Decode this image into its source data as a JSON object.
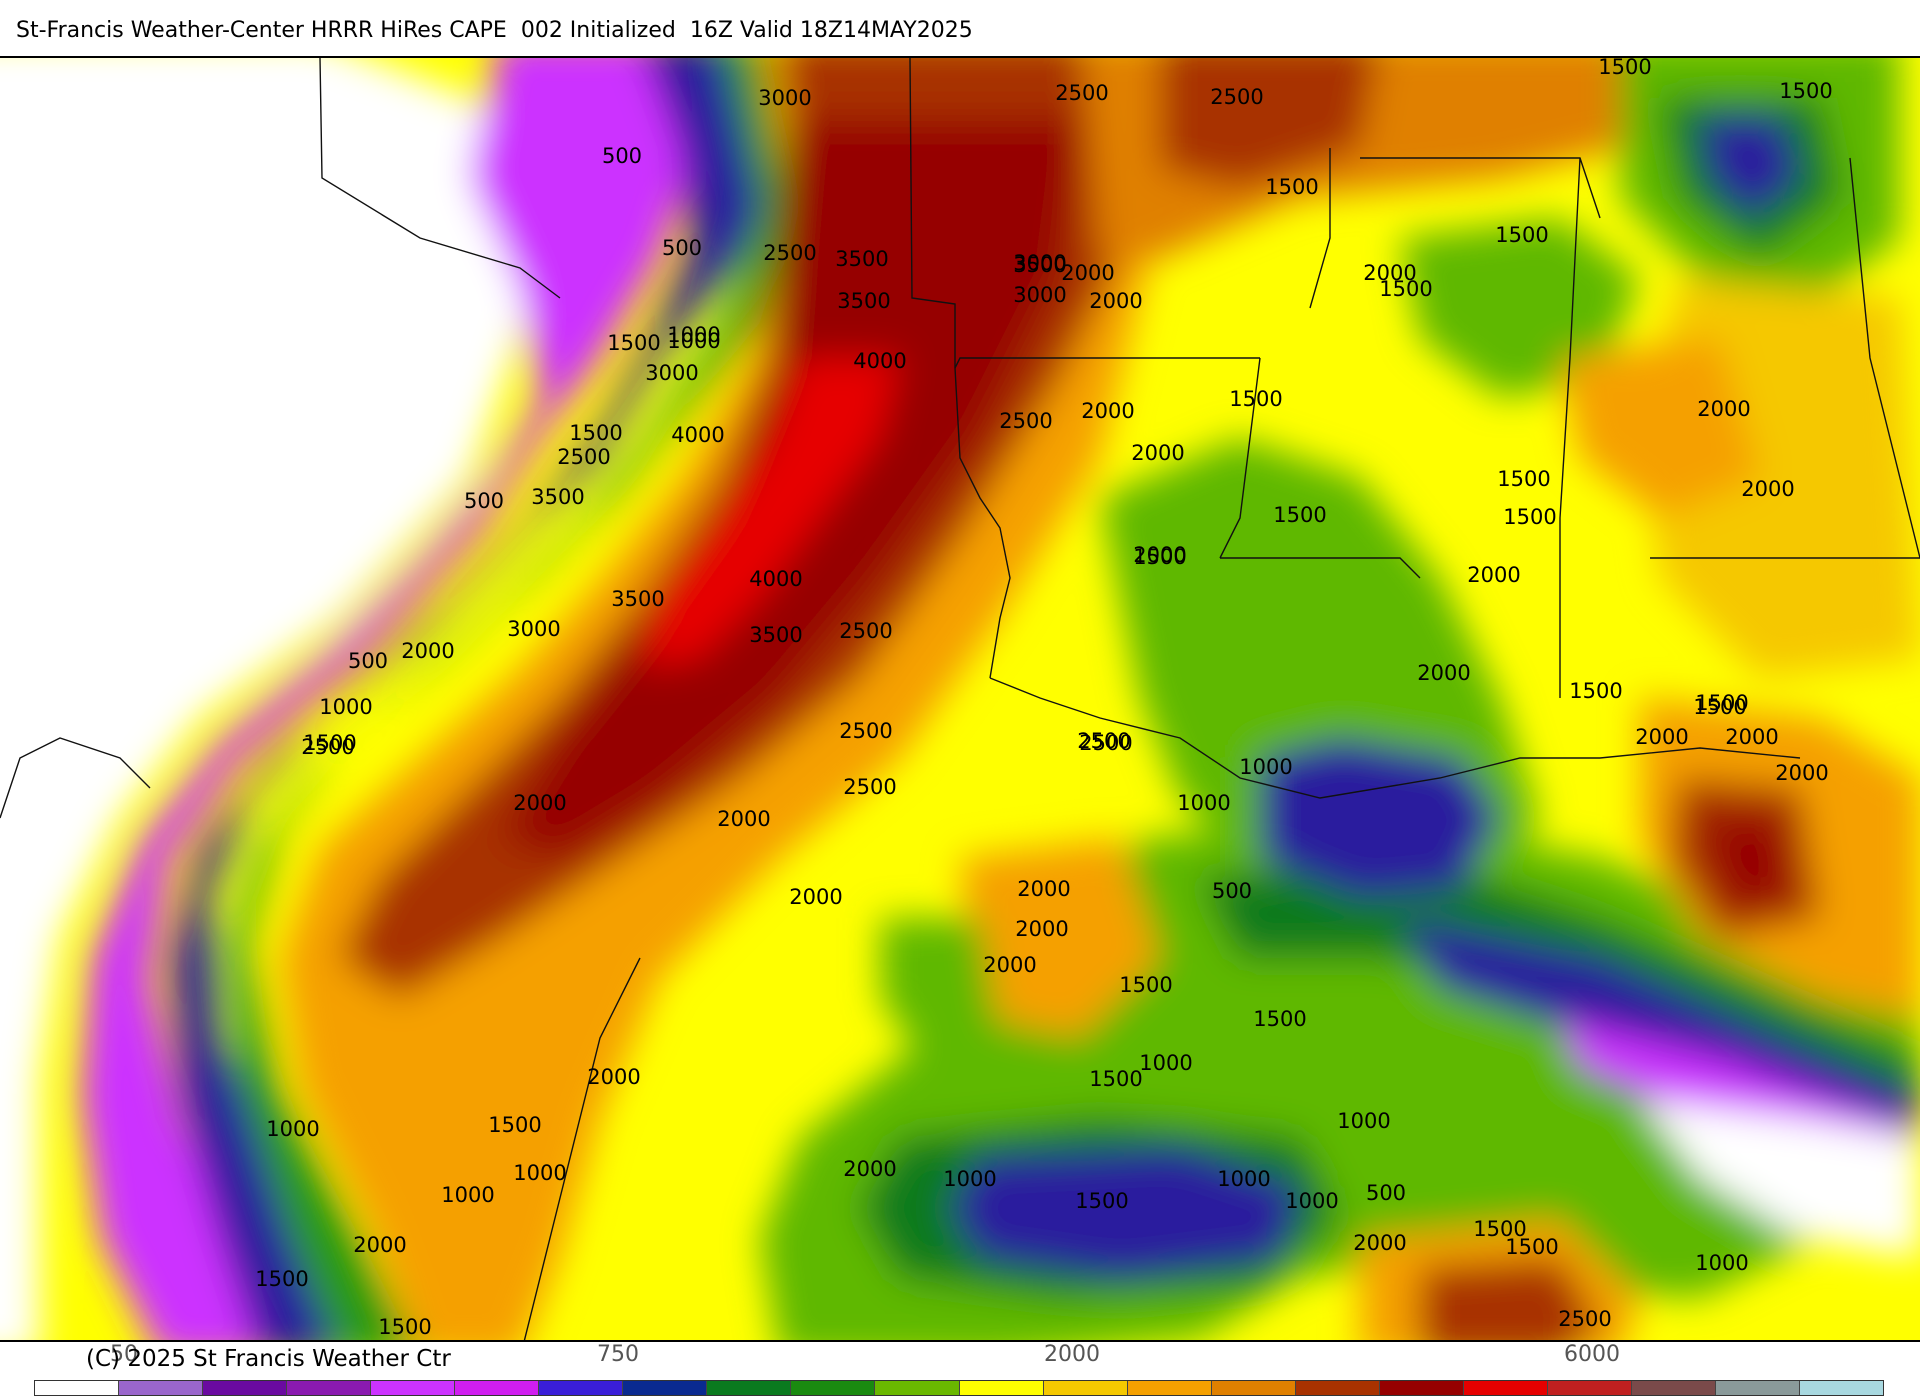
{
  "header": {
    "title": "St-Francis Weather-Center HRRR HiRes CAPE  002 Initialized  16Z Valid 18Z14MAY2025"
  },
  "colors": {
    "band_0_250": "#ffffff",
    "band_250_500": "#cc33ff",
    "band_500_750": "#9a4fd0",
    "band_750_1000": "#2a1a9e",
    "band_1000_1250": "#0a7a1f",
    "band_1250_1500": "#5fb800",
    "band_1500_2000": "#ffff00",
    "band_2000_2500": "#f5a000",
    "band_2500_3000": "#a83200",
    "band_3000_3500": "#960000",
    "band_3500_plus": "#e60000"
  },
  "contour_labels": [
    {
      "text": "3000"
    },
    {
      "text": "2500"
    },
    {
      "text": "2500"
    },
    {
      "text": "1500"
    },
    {
      "text": "1500"
    },
    {
      "text": "500"
    },
    {
      "text": "500"
    },
    {
      "text": "2500"
    },
    {
      "text": "3500"
    },
    {
      "text": "3500"
    },
    {
      "text": "3000"
    },
    {
      "text": "2000"
    },
    {
      "text": "1000"
    },
    {
      "text": "1500"
    },
    {
      "text": "1500"
    },
    {
      "text": "2000"
    },
    {
      "text": "1500"
    },
    {
      "text": "1500"
    },
    {
      "text": "3500"
    },
    {
      "text": "4000"
    },
    {
      "text": "3000"
    },
    {
      "text": "1000"
    },
    {
      "text": "1500"
    },
    {
      "text": "2500"
    },
    {
      "text": "2000"
    },
    {
      "text": "1500"
    },
    {
      "text": "2000"
    },
    {
      "text": "4000"
    },
    {
      "text": "2000"
    },
    {
      "text": "2500"
    },
    {
      "text": "2000"
    },
    {
      "text": "1500"
    },
    {
      "text": "500"
    },
    {
      "text": "3500"
    },
    {
      "text": "1500"
    },
    {
      "text": "1500"
    },
    {
      "text": "2000"
    },
    {
      "text": "2000"
    },
    {
      "text": "4000"
    },
    {
      "text": "3500"
    },
    {
      "text": "3000"
    },
    {
      "text": "2500"
    },
    {
      "text": "3500"
    },
    {
      "text": "3000"
    },
    {
      "text": "2000"
    },
    {
      "text": "1500"
    },
    {
      "text": "500"
    },
    {
      "text": "2000"
    },
    {
      "text": "1500"
    },
    {
      "text": "2000"
    },
    {
      "text": "1000"
    },
    {
      "text": "1500"
    },
    {
      "text": "2500"
    },
    {
      "text": "1500"
    },
    {
      "text": "2500"
    },
    {
      "text": "2000"
    },
    {
      "text": "1500"
    },
    {
      "text": "2500"
    },
    {
      "text": "2000"
    },
    {
      "text": "2500"
    },
    {
      "text": "2000"
    },
    {
      "text": "2000"
    },
    {
      "text": "2500"
    },
    {
      "text": "2000"
    },
    {
      "text": "2000"
    },
    {
      "text": "1000"
    },
    {
      "text": "2000"
    },
    {
      "text": "2000"
    },
    {
      "text": "2000"
    },
    {
      "text": "1000"
    },
    {
      "text": "1500"
    },
    {
      "text": "1000"
    },
    {
      "text": "1500"
    },
    {
      "text": "1500"
    },
    {
      "text": "1000"
    },
    {
      "text": "500"
    },
    {
      "text": "2000"
    },
    {
      "text": "2000"
    },
    {
      "text": "1000"
    },
    {
      "text": "500"
    },
    {
      "text": "1500"
    },
    {
      "text": "1000"
    },
    {
      "text": "1500"
    },
    {
      "text": "1000"
    },
    {
      "text": "1000"
    },
    {
      "text": "1500"
    },
    {
      "text": "2000"
    },
    {
      "text": "2500"
    },
    {
      "text": "1500"
    },
    {
      "text": "2000"
    },
    {
      "text": "1000"
    },
    {
      "text": "1500"
    },
    {
      "text": "1500"
    },
    {
      "text": "1000"
    },
    {
      "text": "1000"
    }
  ],
  "legend": {
    "ticks": [
      {
        "label": "50"
      },
      {
        "label": "750"
      },
      {
        "label": "2000"
      },
      {
        "label": "6000"
      }
    ],
    "copyright": "(C) 2025 St Francis Weather Ctr",
    "swatches": [
      "#ffffff",
      "#9a66cc",
      "#6a0aa0",
      "#8a1ab0",
      "#cc33ff",
      "#d01ef0",
      "#3a1ed8",
      "#0a2a90",
      "#0a7a1f",
      "#1a8a10",
      "#6ab800",
      "#ffff00",
      "#f5c800",
      "#f5a000",
      "#e08000",
      "#a83200",
      "#960000",
      "#e60000",
      "#c02020",
      "#7a4a4a",
      "#8a9a9a",
      "#a8d8e0"
    ]
  }
}
